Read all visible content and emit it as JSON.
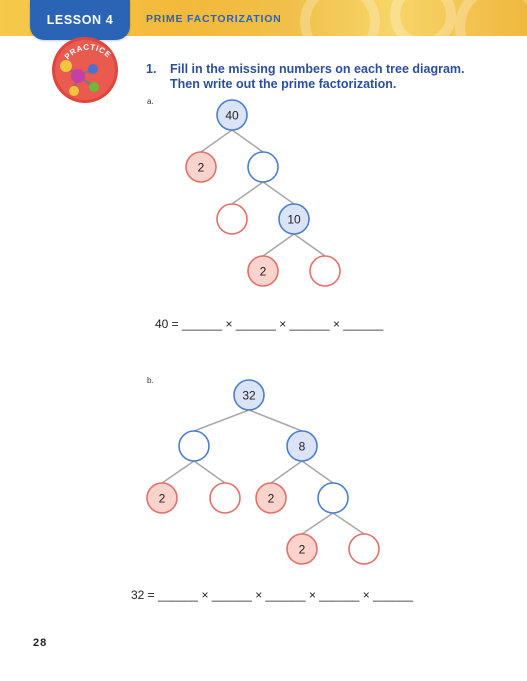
{
  "header": {
    "lesson_label": "LESSON 4",
    "topic_title": "PRIME FACTORIZATION",
    "badge_text": "PRACTICE",
    "bar_color": "#f3bd3f",
    "tab_color": "#2b64b5"
  },
  "question": {
    "number": "1.",
    "line1": "Fill in the missing numbers on each tree diagram.",
    "line2": "Then write out the prime factorization."
  },
  "colors": {
    "blue_stroke": "#4a7fcf",
    "blue_fill": "#dbe4f6",
    "red_stroke": "#e5706a",
    "red_fill": "#f9d3cc",
    "edge": "#a9a9a9"
  },
  "part_a": {
    "label": "a.",
    "nodes": [
      "40",
      "2",
      "",
      "",
      "10",
      "2",
      ""
    ],
    "equation_prefix": "40 =",
    "blanks": [
      "______",
      "______",
      "______",
      "______"
    ],
    "times": "×"
  },
  "part_b": {
    "label": "b.",
    "nodes": [
      "32",
      "",
      "8",
      "2",
      "",
      "2",
      "",
      "2",
      ""
    ],
    "equation_prefix": "32 =",
    "blanks": [
      "______",
      "______",
      "______",
      "______",
      "______"
    ],
    "times": "×"
  },
  "footer": {
    "page_number": "28"
  }
}
